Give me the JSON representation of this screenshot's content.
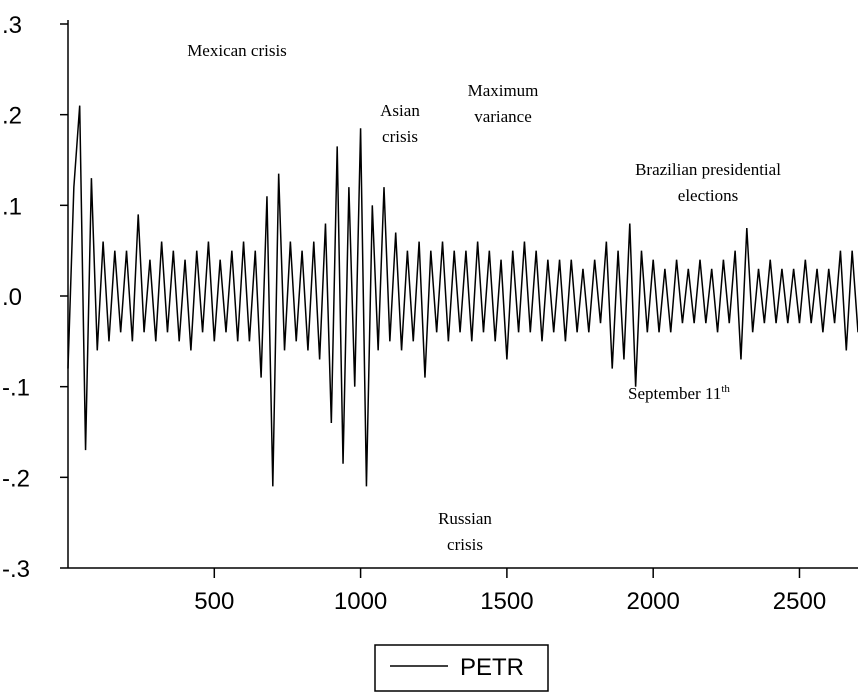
{
  "chart_data": {
    "type": "line",
    "x": [
      0,
      20,
      40,
      60,
      80,
      100,
      120,
      140,
      160,
      180,
      200,
      220,
      240,
      260,
      280,
      300,
      320,
      340,
      360,
      380,
      400,
      420,
      440,
      460,
      480,
      500,
      520,
      540,
      560,
      580,
      600,
      620,
      640,
      660,
      680,
      700,
      720,
      740,
      760,
      780,
      800,
      820,
      840,
      860,
      880,
      900,
      920,
      940,
      960,
      980,
      1000,
      1020,
      1040,
      1060,
      1080,
      1100,
      1120,
      1140,
      1160,
      1180,
      1200,
      1220,
      1240,
      1260,
      1280,
      1300,
      1320,
      1340,
      1360,
      1380,
      1400,
      1420,
      1440,
      1460,
      1480,
      1500,
      1520,
      1540,
      1560,
      1580,
      1600,
      1620,
      1640,
      1660,
      1680,
      1700,
      1720,
      1740,
      1760,
      1780,
      1800,
      1820,
      1840,
      1860,
      1880,
      1900,
      1920,
      1940,
      1960,
      1980,
      2000,
      2020,
      2040,
      2060,
      2080,
      2100,
      2120,
      2140,
      2160,
      2180,
      2200,
      2220,
      2240,
      2260,
      2280,
      2300,
      2320,
      2340,
      2360,
      2380,
      2400,
      2420,
      2440,
      2460,
      2480,
      2500,
      2520,
      2540,
      2560,
      2580,
      2600,
      2620,
      2640,
      2660,
      2680,
      2700
    ],
    "series": [
      {
        "name": "PETR",
        "color": "#000000",
        "values": [
          -0.08,
          0.12,
          0.21,
          -0.17,
          0.13,
          -0.06,
          0.06,
          -0.05,
          0.05,
          -0.04,
          0.05,
          -0.05,
          0.09,
          -0.04,
          0.04,
          -0.05,
          0.06,
          -0.04,
          0.05,
          -0.05,
          0.04,
          -0.06,
          0.05,
          -0.04,
          0.06,
          -0.05,
          0.04,
          -0.04,
          0.05,
          -0.05,
          0.06,
          -0.05,
          0.05,
          -0.09,
          0.11,
          -0.21,
          0.135,
          -0.06,
          0.06,
          -0.05,
          0.05,
          -0.06,
          0.06,
          -0.07,
          0.08,
          -0.14,
          0.165,
          -0.185,
          0.12,
          -0.1,
          0.185,
          -0.21,
          0.1,
          -0.06,
          0.12,
          -0.05,
          0.07,
          -0.06,
          0.05,
          -0.05,
          0.06,
          -0.09,
          0.05,
          -0.04,
          0.06,
          -0.05,
          0.05,
          -0.04,
          0.05,
          -0.05,
          0.06,
          -0.04,
          0.05,
          -0.05,
          0.04,
          -0.07,
          0.05,
          -0.04,
          0.06,
          -0.04,
          0.05,
          -0.05,
          0.04,
          -0.04,
          0.04,
          -0.05,
          0.04,
          -0.04,
          0.03,
          -0.04,
          0.04,
          -0.03,
          0.06,
          -0.08,
          0.05,
          -0.07,
          0.08,
          -0.1,
          0.05,
          -0.04,
          0.04,
          -0.04,
          0.03,
          -0.04,
          0.04,
          -0.03,
          0.03,
          -0.03,
          0.04,
          -0.03,
          0.03,
          -0.04,
          0.04,
          -0.03,
          0.05,
          -0.07,
          0.075,
          -0.04,
          0.03,
          -0.03,
          0.04,
          -0.03,
          0.03,
          -0.03,
          0.03,
          -0.03,
          0.04,
          -0.03,
          0.03,
          -0.04,
          0.03,
          -0.03,
          0.05,
          -0.06,
          0.05,
          -0.04
        ]
      }
    ],
    "xlim": [
      0,
      2700
    ],
    "ylim": [
      -0.3,
      0.3
    ],
    "xticks": [
      500,
      1000,
      1500,
      2000,
      2500
    ],
    "yticks": [
      {
        "value": -0.3,
        "label": "-.3"
      },
      {
        "value": -0.2,
        "label": "-.2"
      },
      {
        "value": -0.1,
        "label": "-.1"
      },
      {
        "value": 0,
        "label": ".0"
      },
      {
        "value": 0.1,
        "label": ".1"
      },
      {
        "value": 0.2,
        "label": ".2"
      },
      {
        "value": 0.3,
        "label": ".3"
      }
    ],
    "annotations": [
      {
        "lines": [
          "Mexican crisis"
        ]
      },
      {
        "lines": [
          "Asian",
          "crisis"
        ]
      },
      {
        "lines": [
          "Maximum",
          "variance"
        ]
      },
      {
        "lines": [
          "Brazilian presidential",
          "elections"
        ]
      },
      {
        "lines": [
          "September 11"
        ],
        "superscript": "th"
      },
      {
        "lines": [
          "Russian",
          "crisis"
        ]
      }
    ],
    "legend": "bottom"
  }
}
